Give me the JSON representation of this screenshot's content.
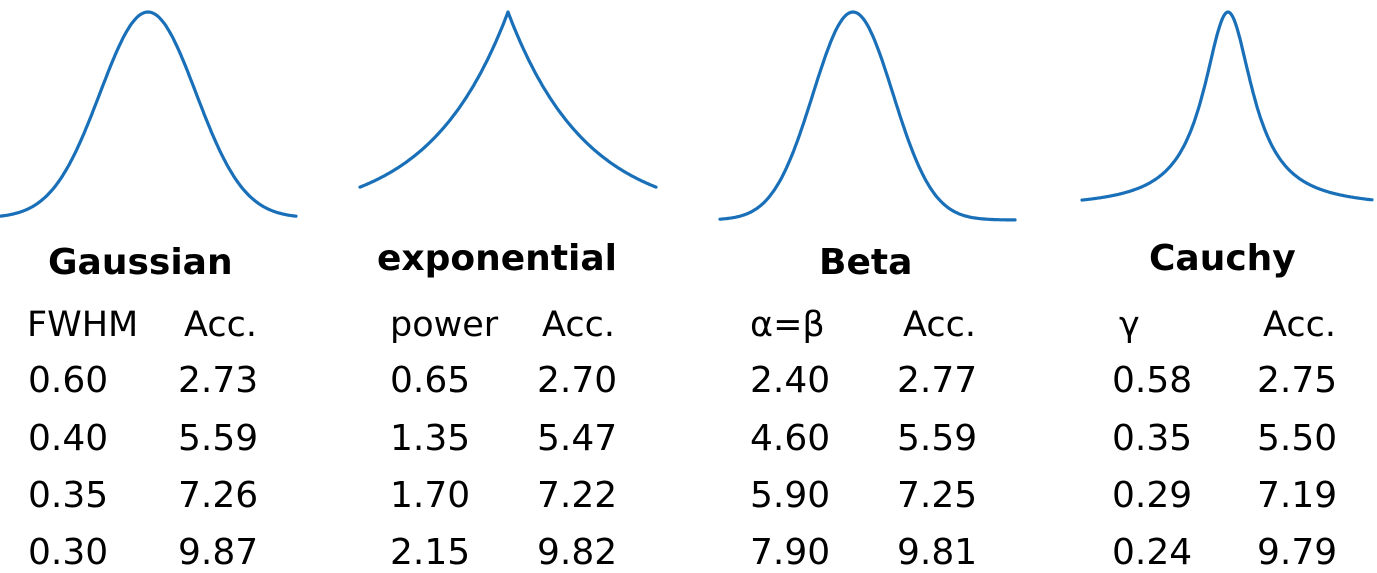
{
  "curve_color": "#1a70b8",
  "panels": [
    {
      "title": "Gaussian",
      "curve_icon": "gaussian-curve",
      "param_label": "FWHM",
      "acc_label": "Acc.",
      "rows": [
        {
          "param": "0.60",
          "acc": "2.73"
        },
        {
          "param": "0.40",
          "acc": "5.59"
        },
        {
          "param": "0.35",
          "acc": "7.26"
        },
        {
          "param": "0.30",
          "acc": "9.87"
        }
      ]
    },
    {
      "title": "exponential",
      "curve_icon": "laplace-curve",
      "param_label": "power",
      "acc_label": "Acc.",
      "rows": [
        {
          "param": "0.65",
          "acc": "2.70"
        },
        {
          "param": "1.35",
          "acc": "5.47"
        },
        {
          "param": "1.70",
          "acc": "7.22"
        },
        {
          "param": "2.15",
          "acc": "9.82"
        }
      ]
    },
    {
      "title": "Beta",
      "curve_icon": "beta-curve",
      "param_label": "α=β",
      "acc_label": "Acc.",
      "rows": [
        {
          "param": "2.40",
          "acc": "2.77"
        },
        {
          "param": "4.60",
          "acc": "5.59"
        },
        {
          "param": "5.90",
          "acc": "7.25"
        },
        {
          "param": "7.90",
          "acc": "9.81"
        }
      ]
    },
    {
      "title": "Cauchy",
      "curve_icon": "cauchy-curve",
      "param_label": "γ",
      "acc_label": "Acc.",
      "rows": [
        {
          "param": "0.58",
          "acc": "2.75"
        },
        {
          "param": "0.35",
          "acc": "5.50"
        },
        {
          "param": "0.29",
          "acc": "7.19"
        },
        {
          "param": "0.24",
          "acc": "9.79"
        }
      ]
    }
  ]
}
